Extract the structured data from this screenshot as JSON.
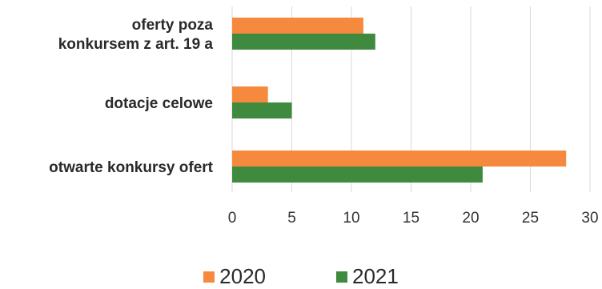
{
  "chart_data": {
    "type": "bar",
    "orientation": "horizontal",
    "categories": [
      [
        "oferty poza",
        "konkursem z art. 19 a"
      ],
      [
        "dotacje celowe"
      ],
      [
        "otwarte konkursy ofert"
      ]
    ],
    "series": [
      {
        "name": "2020",
        "color": "#f58a3e",
        "values": [
          11,
          3,
          28
        ]
      },
      {
        "name": "2021",
        "color": "#3f8a3f",
        "values": [
          12,
          5,
          21
        ]
      }
    ],
    "xlim": [
      0,
      30
    ],
    "xticks": [
      "0",
      "5",
      "10",
      "15",
      "20",
      "25",
      "30"
    ],
    "grid": true,
    "legend_position": "bottom"
  }
}
